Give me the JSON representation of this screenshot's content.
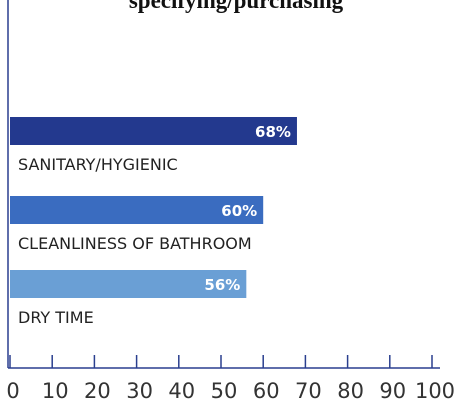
{
  "chart_data": {
    "type": "barh",
    "title": "specifying/purchasing",
    "categories": [
      "SANITARY/HYGIENIC",
      "CLEANLINESS OF BATHROOM",
      "DRY TIME"
    ],
    "values": [
      68,
      60,
      56
    ],
    "value_labels": [
      "68%",
      "60%",
      "56%"
    ],
    "colors": [
      "#23398e",
      "#3a6cc0",
      "#6a9fd5"
    ],
    "xlim": [
      0,
      100
    ],
    "xticks": [
      0,
      10,
      20,
      30,
      40,
      50,
      60,
      70,
      80,
      90,
      100
    ]
  }
}
